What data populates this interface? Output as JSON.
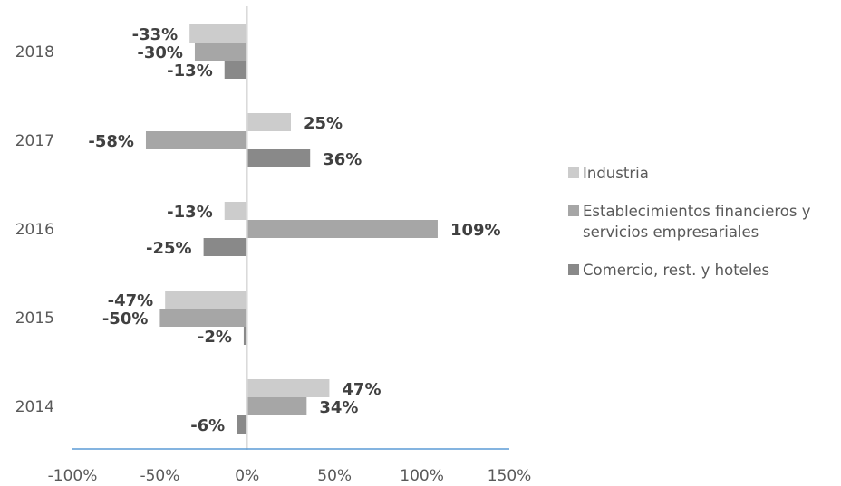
{
  "chart_data": {
    "type": "bar",
    "orientation": "horizontal",
    "categories": [
      "2018",
      "2017",
      "2016",
      "2015",
      "2014"
    ],
    "series": [
      {
        "name": "Industria",
        "color": "#cccccc",
        "values": [
          -33,
          25,
          -13,
          -47,
          47
        ],
        "labels": [
          "-33%",
          "25%",
          "-13%",
          "-47%",
          "47%"
        ]
      },
      {
        "name": "Establecimientos financieros y servicios empresariales",
        "color": "#a6a6a6",
        "values": [
          -30,
          -58,
          109,
          -50,
          34
        ],
        "labels": [
          "-30%",
          "-58%",
          "109%",
          "-50%",
          "34%"
        ]
      },
      {
        "name": "Comercio, rest. y hoteles",
        "color": "#898989",
        "values": [
          -13,
          36,
          -25,
          -2,
          -6
        ],
        "labels": [
          "-13%",
          "36%",
          "-25%",
          "-2%",
          "-6%"
        ]
      }
    ],
    "xlim": [
      -100,
      150
    ],
    "xticks": [
      -100,
      -50,
      0,
      50,
      100,
      150
    ],
    "xtick_labels": [
      "-100%",
      "-50%",
      "0%",
      "50%",
      "100%",
      "150%"
    ],
    "legend_position": "right",
    "grid": false
  }
}
